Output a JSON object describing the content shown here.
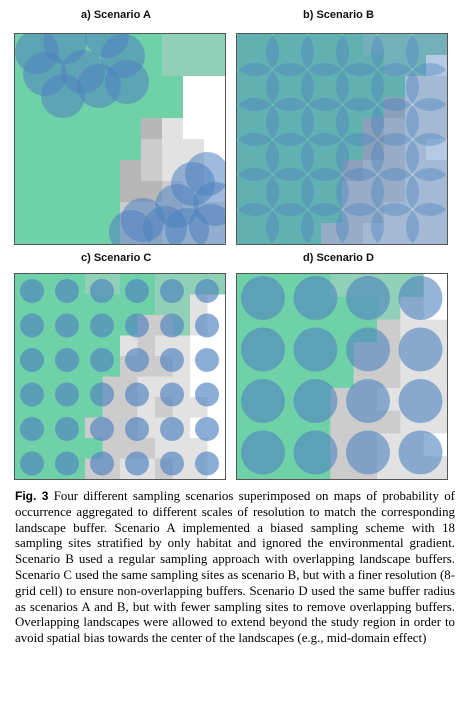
{
  "figure": {
    "panels": [
      {
        "id": "a",
        "title": "a) Scenario A"
      },
      {
        "id": "b",
        "title": "b) Scenario B"
      },
      {
        "id": "c",
        "title": "c) Scenario C"
      },
      {
        "id": "d",
        "title": "d) Scenario D"
      }
    ],
    "caption_label": "Fig. 3",
    "caption_text": "Four different sampling scenarios superimposed on maps of probability of occurrence aggregated to different scales of resolution to match the corresponding landscape buffer. Scenario A implemented a biased sampling scheme with 18 sampling sites stratified by only habitat and ignored the environmental gradient. Scenario B used a regular sampling approach with overlapping landscape buffers. Scenario C used the same sampling sites as scenario B, but with a finer resolution (8-grid cell) to ensure non-overlapping buffers. Scenario D used the same buffer radius as scenarios A and B, but with fewer sampling sites to remove overlapping buffers. Overlapping landscapes were allowed to extend beyond the study region in order to avoid spatial bias towards the center of the landscapes (e.g., mid-domain effect)"
  },
  "colors": {
    "habitat_high": "#6fd1a8",
    "habitat_mid": "#8fd0b6",
    "gray_dark": "#b7b7b7",
    "gray_mid": "#cccccc",
    "gray_light": "#e2e2e2",
    "circle_fill": "#4f82c0"
  }
}
